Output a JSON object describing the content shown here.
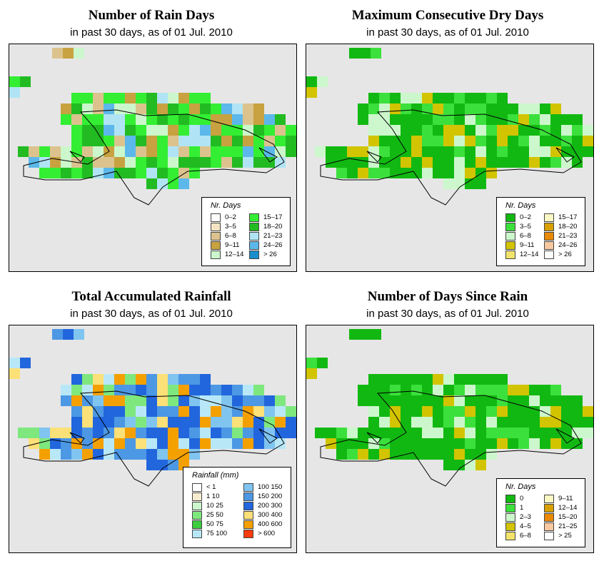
{
  "panels": [
    {
      "id": "rain-days",
      "title": "Number of Rain Days",
      "subtitle": "in past 30 days, as of  01 Jul. 2010",
      "legend": {
        "title": "Nr. Days",
        "items": [
          {
            "label": "0–2",
            "color": "#ffffff"
          },
          {
            "label": "3–5",
            "color": "#f3e3c3"
          },
          {
            "label": "6–8",
            "color": "#dcc38e"
          },
          {
            "label": "9–11",
            "color": "#c8a240"
          },
          {
            "label": "12–14",
            "color": "#ccf7cc"
          },
          {
            "label": "15–17",
            "color": "#33ee33"
          },
          {
            "label": "18–20",
            "color": "#22bb22"
          },
          {
            "label": "21–23",
            "color": "#b0e4f4"
          },
          {
            "label": "24–26",
            "color": "#5cb8ea"
          },
          {
            "label": "> 26",
            "color": "#1a8ecc"
          }
        ]
      }
    },
    {
      "id": "dry-days",
      "title": "Maximum Consecutive Dry Days",
      "subtitle": "in past 30 days, as of  01 Jul. 2010",
      "legend": {
        "title": "Nr. Days",
        "items": [
          {
            "label": "0–2",
            "color": "#12b812"
          },
          {
            "label": "3–5",
            "color": "#3ce03c"
          },
          {
            "label": "6–8",
            "color": "#ccf7cc"
          },
          {
            "label": "9–11",
            "color": "#d2c400"
          },
          {
            "label": "12–14",
            "color": "#f2e46a"
          },
          {
            "label": "15–17",
            "color": "#fcf8c4"
          },
          {
            "label": "18–20",
            "color": "#d8a000"
          },
          {
            "label": "21–23",
            "color": "#e88a08"
          },
          {
            "label": "24–26",
            "color": "#f8c8a0"
          },
          {
            "label": "> 26",
            "color": "#ffffff"
          }
        ]
      }
    },
    {
      "id": "rainfall",
      "title": "Total Accumulated Rainfall",
      "subtitle": "in past 30 days, as of  01 Jul. 2010",
      "legend": {
        "title": "Rainfall (mm)",
        "items": [
          {
            "label": "< 1",
            "color": "#ffffff"
          },
          {
            "label": "1   10",
            "color": "#f6ecd0"
          },
          {
            "label": "10   25",
            "color": "#ccf7cc"
          },
          {
            "label": "25   50",
            "color": "#7ee87e"
          },
          {
            "label": "50   75",
            "color": "#3ccc3c"
          },
          {
            "label": "75   100",
            "color": "#b8e8f8"
          },
          {
            "label": "100   150",
            "color": "#80c4f0"
          },
          {
            "label": "150   200",
            "color": "#4c98e4"
          },
          {
            "label": "200   300",
            "color": "#2266dd"
          },
          {
            "label": "300   400",
            "color": "#fce078"
          },
          {
            "label": "400   600",
            "color": "#f4a000"
          },
          {
            "label": "> 600",
            "color": "#f83c0c"
          }
        ]
      }
    },
    {
      "id": "since-rain",
      "title": "Number of Days Since Rain",
      "subtitle": "in past 30 days, as of  01 Jul. 2010",
      "legend": {
        "title": "Nr. Days",
        "items": [
          {
            "label": "0",
            "color": "#12b812"
          },
          {
            "label": "1",
            "color": "#3ce03c"
          },
          {
            "label": "2–3",
            "color": "#ccf7cc"
          },
          {
            "label": "4–5",
            "color": "#d2c400"
          },
          {
            "label": "6–8",
            "color": "#f2e46a"
          },
          {
            "label": "9–11",
            "color": "#fcf8c4"
          },
          {
            "label": "12–14",
            "color": "#d8a000"
          },
          {
            "label": "15–20",
            "color": "#e88a08"
          },
          {
            "label": "21–25",
            "color": "#f8c8a0"
          },
          {
            "label": "> 25",
            "color": "#ffffff"
          }
        ]
      }
    }
  ]
}
